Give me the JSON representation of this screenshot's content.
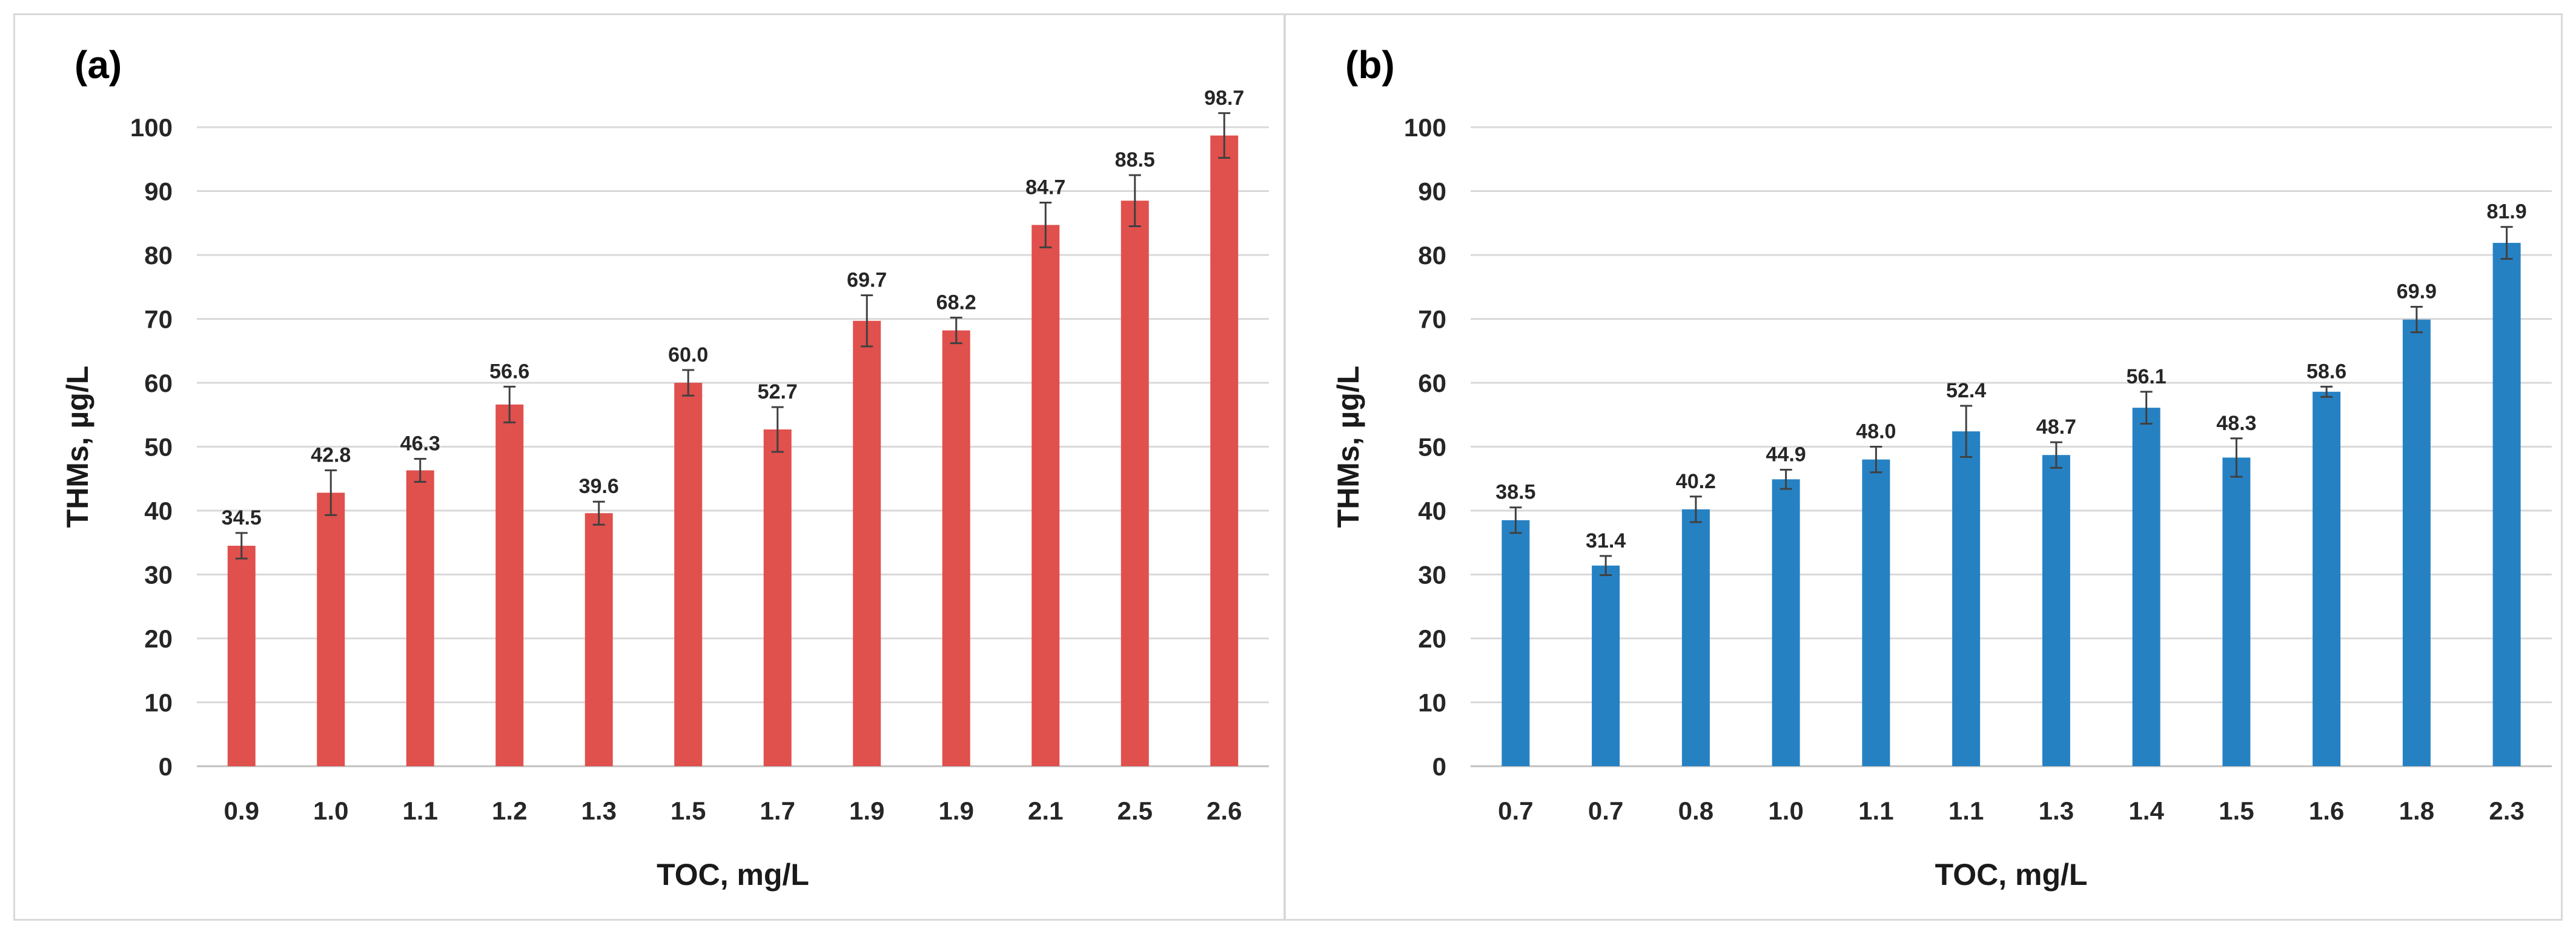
{
  "chart_data": [
    {
      "type": "bar",
      "panel_label": "(a)",
      "xlabel": "TOC, mg/L",
      "ylabel": "THMs, µg/L",
      "ylim": [
        0,
        100
      ],
      "yticks": [
        "0",
        "10",
        "20",
        "30",
        "40",
        "50",
        "60",
        "70",
        "80",
        "90",
        "100"
      ],
      "categories": [
        "0.9",
        "1.0",
        "1.1",
        "1.2",
        "1.3",
        "1.5",
        "1.7",
        "1.9",
        "1.9",
        "2.1",
        "2.5",
        "2.6"
      ],
      "values": [
        34.5,
        42.8,
        46.3,
        56.6,
        39.6,
        60.0,
        52.7,
        69.7,
        68.2,
        84.7,
        88.5,
        98.7
      ],
      "labels": [
        "34.5",
        "42.8",
        "46.3",
        "56.6",
        "39.6",
        "60.0",
        "52.7",
        "69.7",
        "68.2",
        "84.7",
        "88.5",
        "98.7"
      ],
      "errors": [
        2.0,
        3.5,
        1.8,
        2.8,
        1.8,
        2.0,
        3.5,
        4.0,
        2.0,
        3.5,
        4.0,
        3.5
      ],
      "color": "#e0504d",
      "grid": true
    },
    {
      "type": "bar",
      "panel_label": "(b)",
      "xlabel": "TOC, mg/L",
      "ylabel": "THMs, µg/L",
      "ylim": [
        0,
        100
      ],
      "yticks": [
        "0",
        "10",
        "20",
        "30",
        "40",
        "50",
        "60",
        "70",
        "80",
        "90",
        "100"
      ],
      "categories": [
        "0.7",
        "0.7",
        "0.8",
        "1.0",
        "1.1",
        "1.1",
        "1.3",
        "1.4",
        "1.5",
        "1.6",
        "1.8",
        "2.3"
      ],
      "values": [
        38.5,
        31.4,
        40.2,
        44.9,
        48.0,
        52.4,
        48.7,
        56.1,
        48.3,
        58.6,
        69.9,
        81.9
      ],
      "labels": [
        "38.5",
        "31.4",
        "40.2",
        "44.9",
        "48.0",
        "52.4",
        "48.7",
        "56.1",
        "48.3",
        "58.6",
        "69.9",
        "81.9"
      ],
      "errors": [
        2.0,
        1.5,
        2.0,
        1.5,
        2.0,
        4.0,
        2.0,
        2.5,
        3.0,
        0.8,
        2.0,
        2.5
      ],
      "color": "#2681c3",
      "grid": true
    }
  ]
}
